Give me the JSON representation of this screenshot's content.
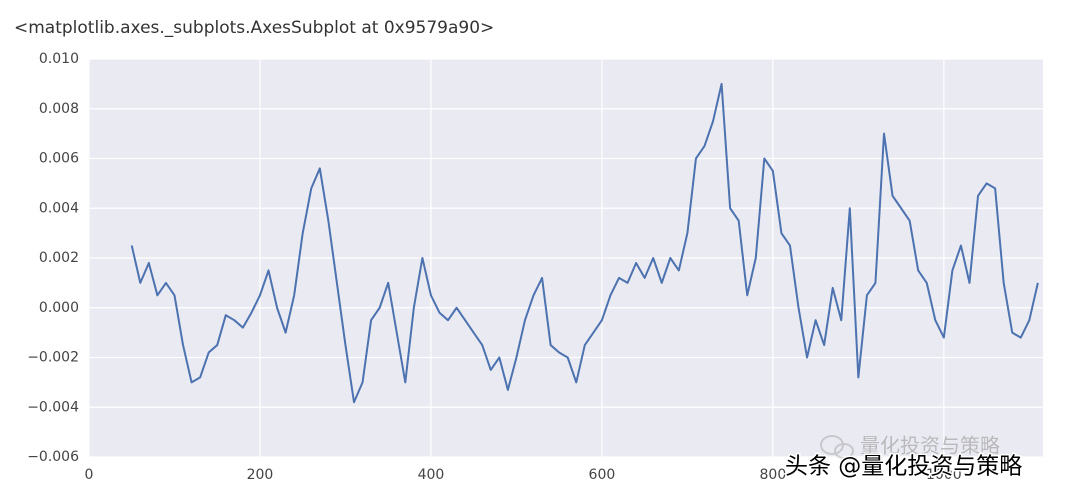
{
  "output_text": "<matplotlib.axes._subplots.AxesSubplot at 0x9579a90>",
  "chart_data": {
    "type": "line",
    "x": [
      50,
      60,
      70,
      80,
      90,
      100,
      110,
      120,
      130,
      140,
      150,
      160,
      170,
      180,
      190,
      200,
      210,
      220,
      230,
      240,
      250,
      260,
      270,
      280,
      290,
      300,
      310,
      320,
      330,
      340,
      350,
      360,
      370,
      380,
      390,
      400,
      410,
      420,
      430,
      440,
      450,
      460,
      470,
      480,
      490,
      500,
      510,
      520,
      530,
      540,
      550,
      560,
      570,
      580,
      590,
      600,
      610,
      620,
      630,
      640,
      650,
      660,
      670,
      680,
      690,
      700,
      710,
      720,
      730,
      740,
      750,
      760,
      770,
      780,
      790,
      800,
      810,
      820,
      830,
      840,
      850,
      860,
      870,
      880,
      890,
      900,
      910,
      920,
      930,
      940,
      950,
      960,
      970,
      980,
      990,
      1000,
      1010,
      1020,
      1030,
      1040,
      1050,
      1060,
      1070,
      1080,
      1090,
      1100,
      1110
    ],
    "series": [
      {
        "color": "#4c72b0",
        "values": [
          0.0025,
          0.001,
          0.0018,
          0.0005,
          0.001,
          0.0005,
          -0.0015,
          -0.003,
          -0.0028,
          -0.0018,
          -0.0015,
          -0.0003,
          -0.0005,
          -0.0008,
          -0.0002,
          0.0005,
          0.0015,
          0.0,
          -0.001,
          0.0005,
          0.003,
          0.0048,
          0.0056,
          0.0035,
          0.001,
          -0.0015,
          -0.0038,
          -0.003,
          -0.0005,
          0.0,
          0.001,
          -0.001,
          -0.003,
          0.0,
          0.002,
          0.0005,
          -0.0002,
          -0.0005,
          0.0,
          -0.0005,
          -0.001,
          -0.0015,
          -0.0025,
          -0.002,
          -0.0033,
          -0.002,
          -0.0005,
          0.0005,
          0.0012,
          -0.0015,
          -0.0018,
          -0.002,
          -0.003,
          -0.0015,
          -0.001,
          -0.0005,
          0.0005,
          0.0012,
          0.001,
          0.0018,
          0.0012,
          0.002,
          0.001,
          0.002,
          0.0015,
          0.003,
          0.006,
          0.0065,
          0.0075,
          0.009,
          0.004,
          0.0035,
          0.0005,
          0.002,
          0.006,
          0.0055,
          0.003,
          0.0025,
          0.0,
          -0.002,
          -0.0005,
          -0.0015,
          0.0008,
          -0.0005,
          0.004,
          -0.0028,
          0.0005,
          0.001,
          0.007,
          0.0045,
          0.004,
          0.0035,
          0.0015,
          0.001,
          -0.0005,
          -0.0012,
          0.0015,
          0.0025,
          0.001,
          0.0045,
          0.005,
          0.0048,
          0.001,
          -0.001,
          -0.0012,
          -0.0005,
          0.001
        ]
      }
    ],
    "xlim": [
      0,
      1116
    ],
    "ylim": [
      -0.006,
      0.01
    ],
    "xticks": [
      0,
      200,
      400,
      600,
      800,
      1000
    ],
    "yticks": [
      {
        "value": -0.006,
        "label": "−0.006"
      },
      {
        "value": -0.004,
        "label": "−0.004"
      },
      {
        "value": -0.002,
        "label": "−0.002"
      },
      {
        "value": 0,
        "label": "0.000"
      },
      {
        "value": 0.002,
        "label": "0.002"
      },
      {
        "value": 0.004,
        "label": "0.004"
      },
      {
        "value": 0.006,
        "label": "0.006"
      },
      {
        "value": 0.008,
        "label": "0.008"
      },
      {
        "value": 0.01,
        "label": "0.010"
      }
    ],
    "grid": true
  },
  "watermark": {
    "faded": "量化投资与策略",
    "text": "头条 @量化投资与策略"
  }
}
